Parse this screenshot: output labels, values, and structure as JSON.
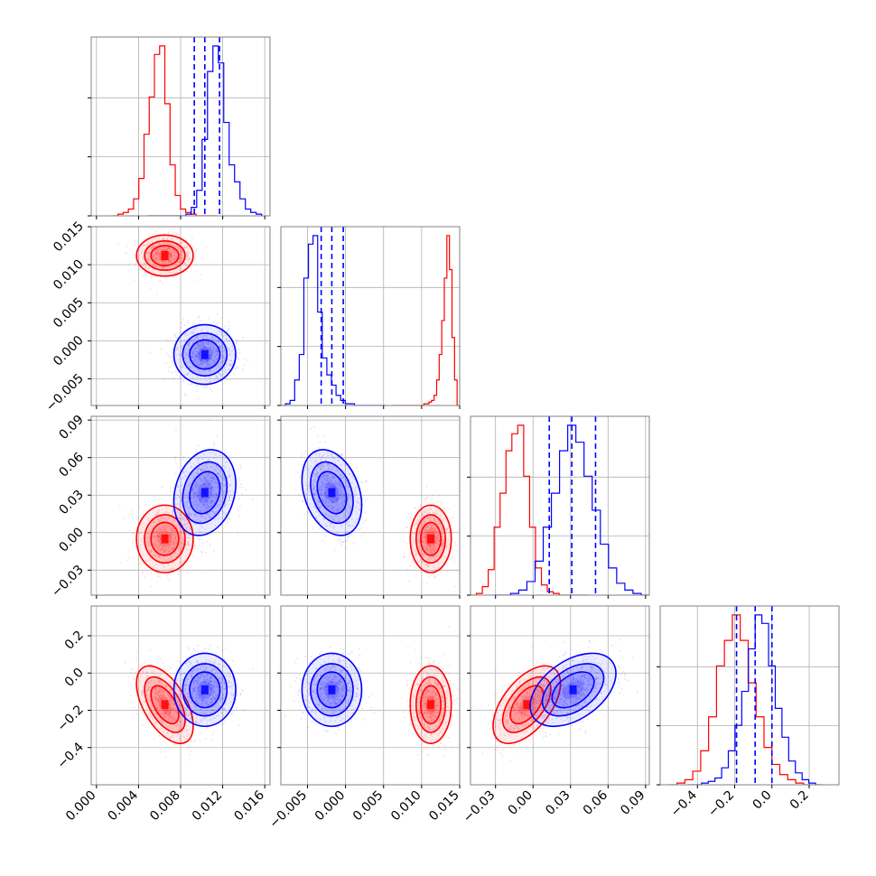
{
  "chart_data": {
    "type": "corner",
    "colors": {
      "red": "#ff0000",
      "blue": "#0000ff",
      "grid": "#b0b0b0",
      "axis": "#808080"
    },
    "params": [
      {
        "range": [
          -0.0005,
          0.0165
        ],
        "ticks": [
          "0.000",
          "0.004",
          "0.008",
          "0.012",
          "0.016"
        ],
        "tick_values": [
          0.0,
          0.004,
          0.008,
          0.012,
          0.016
        ]
      },
      {
        "range": [
          -0.0085,
          0.015
        ],
        "ticks": [
          "−0.005",
          "0.000",
          "0.005",
          "0.010",
          "0.015"
        ],
        "tick_values": [
          -0.005,
          0.0,
          0.005,
          0.01,
          0.015
        ]
      },
      {
        "range": [
          -0.05,
          0.093
        ],
        "ticks": [
          "−0.03",
          "0.00",
          "0.03",
          "0.06",
          "0.09"
        ],
        "tick_values": [
          -0.03,
          0.0,
          0.03,
          0.06,
          0.09
        ]
      },
      {
        "range": [
          -0.6,
          0.36
        ],
        "ticks": [
          "−0.4",
          "−0.2",
          "0.0",
          "0.2"
        ],
        "tick_values": [
          -0.4,
          -0.2,
          0.0,
          0.2
        ]
      }
    ],
    "series": [
      {
        "color": "red",
        "mean": [
          0.0065,
          0.0112,
          -0.005,
          -0.17
        ],
        "std": [
          0.0011,
          0.0011,
          0.011,
          0.085
        ],
        "corr": {
          "0_3": -0.55,
          "2_3": 0.55
        },
        "hist": [
          [
            0,
            1,
            2,
            4,
            10,
            22,
            48,
            70,
            95,
            100,
            66,
            30,
            12,
            4,
            2,
            1,
            0,
            0,
            0,
            0
          ],
          [
            0,
            0,
            0,
            0,
            0,
            0,
            0,
            0,
            0,
            0,
            0,
            0,
            1,
            1,
            2,
            3,
            6,
            15,
            30,
            50,
            75,
            100,
            80,
            40,
            15,
            0
          ],
          [
            0,
            1,
            5,
            15,
            40,
            60,
            85,
            95,
            100,
            70,
            40,
            16,
            6,
            2,
            1,
            0,
            0,
            0,
            0,
            0
          ],
          [
            0,
            1,
            3,
            8,
            20,
            40,
            70,
            85,
            100,
            85,
            60,
            40,
            22,
            12,
            6,
            3,
            1,
            0
          ]
        ]
      },
      {
        "color": "blue",
        "mean": [
          0.0103,
          -0.0018,
          0.032,
          -0.09
        ],
        "std": [
          0.0012,
          0.0016,
          0.014,
          0.08
        ],
        "corr": {
          "0_2": 0.2,
          "1_2": -0.3,
          "2_3": 0.45
        },
        "quantiles": [
          [
            0.0093,
            0.0103,
            0.0117
          ],
          [
            -0.0032,
            -0.0018,
            -0.0003
          ],
          [
            0.013,
            0.031,
            0.05
          ],
          [
            -0.19,
            -0.09,
            0.0
          ]
        ],
        "hist": [
          [
            0,
            0,
            0,
            0,
            0,
            0,
            0,
            1,
            5,
            15,
            45,
            85,
            100,
            90,
            55,
            30,
            20,
            10,
            4,
            2,
            1
          ],
          [
            0,
            1,
            3,
            15,
            30,
            75,
            95,
            100,
            55,
            28,
            18,
            12,
            6,
            3,
            1,
            1,
            0,
            0,
            0,
            0,
            0,
            0,
            0
          ],
          [
            0,
            0,
            1,
            3,
            8,
            20,
            40,
            60,
            85,
            100,
            90,
            70,
            50,
            30,
            16,
            7,
            3,
            1,
            0
          ],
          [
            0,
            0,
            1,
            2,
            4,
            10,
            20,
            35,
            55,
            80,
            100,
            95,
            70,
            45,
            28,
            14,
            7,
            3,
            1,
            0
          ]
        ]
      }
    ],
    "grid": true
  }
}
